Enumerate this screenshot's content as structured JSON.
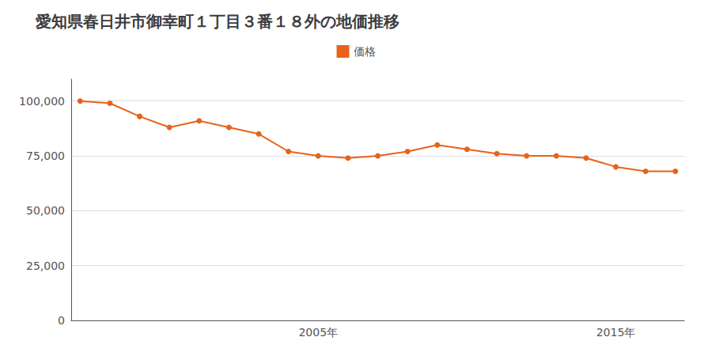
{
  "chart_data": {
    "type": "line",
    "title": "愛知県春日井市御幸町１丁目３番１８外の地価推移",
    "x": [
      1997,
      1998,
      1999,
      2000,
      2001,
      2002,
      2003,
      2004,
      2005,
      2006,
      2007,
      2008,
      2009,
      2010,
      2011,
      2012,
      2013,
      2014,
      2015,
      2016,
      2017
    ],
    "series": [
      {
        "name": "価格",
        "color": "#E8621A",
        "marker": "circle",
        "values": [
          100000,
          99000,
          93000,
          88000,
          91000,
          88000,
          85000,
          77000,
          75000,
          74000,
          75000,
          77000,
          80000,
          78000,
          76000,
          75000,
          75000,
          74000,
          70000,
          68000,
          68000
        ]
      }
    ],
    "xlim": [
      1996.7,
      2017.3
    ],
    "xticks": [
      {
        "value": 2005,
        "label": "2005年"
      },
      {
        "value": 2015,
        "label": "2015年"
      }
    ],
    "ylim": [
      0,
      110000
    ],
    "yticks": [
      0,
      {
        "value": 25000,
        "label": "25,000"
      },
      {
        "value": 50000,
        "label": "50,000"
      },
      {
        "value": 75000,
        "label": "75,000"
      },
      {
        "value": 100000,
        "label": "100,000"
      }
    ],
    "grid": true,
    "legend": "top"
  }
}
